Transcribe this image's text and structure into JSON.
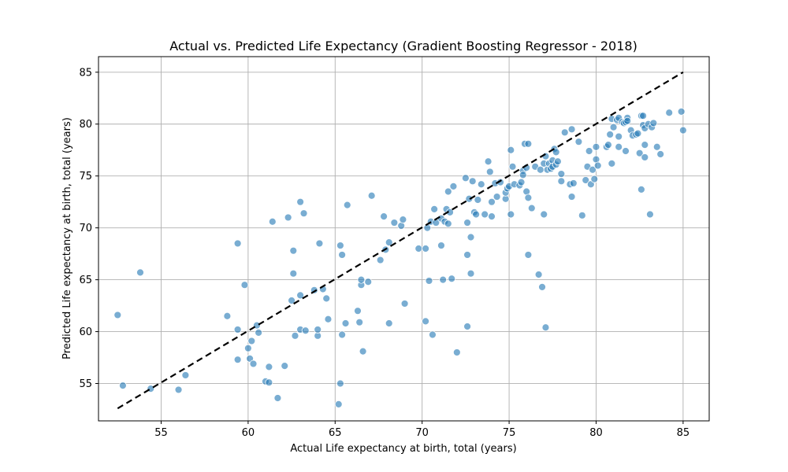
{
  "chart_data": {
    "type": "scatter",
    "title": "Actual vs. Predicted Life Expectancy (Gradient Boosting Regressor - 2018)",
    "xlabel": "Actual Life expectancy at birth, total (years)",
    "ylabel": "Predicted Life expectancy at birth, total (years)",
    "xlim": [
      51.4,
      86.5
    ],
    "ylim": [
      51.4,
      86.5
    ],
    "xticks": [
      55,
      60,
      65,
      70,
      75,
      80,
      85
    ],
    "yticks": [
      55,
      60,
      65,
      70,
      75,
      80,
      85
    ],
    "grid": true,
    "point_color": "#1f77b4",
    "reference_line": {
      "style": "dashed",
      "color": "#000000",
      "from": [
        52.5,
        52.6
      ],
      "to": [
        85.0,
        85.0
      ]
    },
    "points": [
      [
        52.5,
        61.6
      ],
      [
        52.8,
        54.8
      ],
      [
        53.8,
        65.7
      ],
      [
        54.4,
        54.5
      ],
      [
        56.0,
        54.4
      ],
      [
        56.4,
        55.8
      ],
      [
        58.8,
        61.5
      ],
      [
        59.4,
        68.5
      ],
      [
        59.4,
        60.2
      ],
      [
        59.4,
        57.3
      ],
      [
        59.8,
        64.5
      ],
      [
        60.0,
        58.4
      ],
      [
        60.1,
        57.4
      ],
      [
        60.2,
        59.1
      ],
      [
        60.3,
        56.9
      ],
      [
        60.5,
        60.6
      ],
      [
        60.6,
        59.9
      ],
      [
        61.0,
        55.2
      ],
      [
        61.2,
        56.6
      ],
      [
        61.2,
        55.1
      ],
      [
        61.4,
        70.6
      ],
      [
        61.7,
        53.6
      ],
      [
        62.1,
        56.7
      ],
      [
        62.3,
        71.0
      ],
      [
        62.5,
        63.0
      ],
      [
        62.6,
        65.6
      ],
      [
        62.6,
        67.8
      ],
      [
        62.7,
        59.6
      ],
      [
        63.0,
        72.5
      ],
      [
        63.0,
        63.5
      ],
      [
        63.0,
        60.2
      ],
      [
        63.2,
        71.4
      ],
      [
        63.3,
        60.1
      ],
      [
        63.8,
        64.0
      ],
      [
        64.0,
        59.6
      ],
      [
        64.0,
        60.2
      ],
      [
        64.1,
        68.5
      ],
      [
        64.3,
        64.1
      ],
      [
        64.5,
        63.2
      ],
      [
        64.6,
        61.2
      ],
      [
        65.2,
        53.0
      ],
      [
        65.3,
        55.0
      ],
      [
        65.3,
        68.3
      ],
      [
        65.4,
        59.7
      ],
      [
        65.4,
        67.4
      ],
      [
        65.6,
        60.8
      ],
      [
        65.7,
        72.2
      ],
      [
        66.3,
        62.0
      ],
      [
        66.4,
        60.9
      ],
      [
        66.5,
        64.5
      ],
      [
        66.5,
        65.0
      ],
      [
        66.6,
        58.1
      ],
      [
        66.9,
        64.8
      ],
      [
        67.1,
        73.1
      ],
      [
        67.6,
        66.9
      ],
      [
        67.8,
        71.1
      ],
      [
        67.9,
        67.9
      ],
      [
        68.1,
        60.8
      ],
      [
        68.1,
        68.6
      ],
      [
        68.4,
        70.5
      ],
      [
        68.8,
        70.2
      ],
      [
        68.9,
        70.8
      ],
      [
        69.0,
        62.7
      ],
      [
        69.8,
        68.0
      ],
      [
        70.2,
        68.0
      ],
      [
        70.2,
        61.0
      ],
      [
        70.3,
        70.0
      ],
      [
        70.4,
        64.9
      ],
      [
        70.5,
        70.6
      ],
      [
        70.6,
        59.7
      ],
      [
        70.7,
        71.8
      ],
      [
        70.8,
        70.5
      ],
      [
        71.1,
        68.3
      ],
      [
        71.1,
        70.9
      ],
      [
        71.2,
        65.0
      ],
      [
        71.3,
        70.6
      ],
      [
        71.4,
        71.8
      ],
      [
        71.5,
        73.5
      ],
      [
        71.5,
        70.4
      ],
      [
        71.6,
        71.5
      ],
      [
        71.7,
        65.1
      ],
      [
        71.8,
        74.0
      ],
      [
        72.0,
        58.0
      ],
      [
        72.5,
        74.8
      ],
      [
        72.6,
        60.5
      ],
      [
        72.6,
        67.4
      ],
      [
        72.6,
        70.5
      ],
      [
        72.7,
        72.8
      ],
      [
        72.8,
        65.6
      ],
      [
        72.8,
        69.1
      ],
      [
        72.9,
        74.5
      ],
      [
        73.0,
        71.5
      ],
      [
        73.1,
        71.3
      ],
      [
        73.2,
        72.7
      ],
      [
        73.4,
        74.2
      ],
      [
        73.6,
        71.3
      ],
      [
        73.8,
        76.4
      ],
      [
        73.9,
        75.4
      ],
      [
        74.0,
        71.1
      ],
      [
        74.0,
        72.5
      ],
      [
        74.2,
        74.3
      ],
      [
        74.3,
        73.0
      ],
      [
        74.5,
        74.4
      ],
      [
        74.8,
        72.8
      ],
      [
        74.8,
        73.4
      ],
      [
        74.9,
        73.8
      ],
      [
        75.0,
        74.0
      ],
      [
        75.1,
        77.5
      ],
      [
        75.1,
        71.3
      ],
      [
        75.2,
        75.9
      ],
      [
        75.3,
        74.2
      ],
      [
        75.6,
        74.1
      ],
      [
        75.7,
        74.4
      ],
      [
        75.8,
        75.5
      ],
      [
        75.8,
        75.1
      ],
      [
        75.9,
        78.1
      ],
      [
        76.0,
        73.5
      ],
      [
        76.0,
        75.8
      ],
      [
        76.1,
        78.1
      ],
      [
        76.1,
        67.4
      ],
      [
        76.1,
        72.9
      ],
      [
        76.3,
        71.9
      ],
      [
        76.5,
        75.9
      ],
      [
        76.7,
        65.5
      ],
      [
        76.8,
        75.6
      ],
      [
        76.9,
        64.3
      ],
      [
        77.0,
        76.2
      ],
      [
        77.0,
        71.3
      ],
      [
        77.1,
        60.4
      ],
      [
        77.1,
        76.9
      ],
      [
        77.2,
        75.6
      ],
      [
        77.3,
        76.2
      ],
      [
        77.4,
        75.7
      ],
      [
        77.5,
        76.5
      ],
      [
        77.5,
        75.9
      ],
      [
        77.6,
        77.6
      ],
      [
        77.7,
        77.3
      ],
      [
        77.7,
        76.1
      ],
      [
        77.8,
        76.4
      ],
      [
        78.0,
        75.2
      ],
      [
        78.0,
        74.5
      ],
      [
        78.2,
        79.2
      ],
      [
        78.5,
        74.2
      ],
      [
        78.6,
        79.5
      ],
      [
        78.6,
        73.0
      ],
      [
        78.7,
        74.3
      ],
      [
        79.0,
        78.3
      ],
      [
        79.2,
        71.2
      ],
      [
        79.4,
        74.6
      ],
      [
        79.5,
        75.9
      ],
      [
        79.6,
        77.4
      ],
      [
        79.7,
        74.2
      ],
      [
        79.8,
        75.6
      ],
      [
        79.9,
        74.7
      ],
      [
        80.0,
        76.6
      ],
      [
        80.0,
        77.8
      ],
      [
        80.1,
        76.0
      ],
      [
        80.6,
        77.8
      ],
      [
        80.7,
        78.0
      ],
      [
        80.8,
        79.0
      ],
      [
        80.9,
        76.2
      ],
      [
        80.9,
        80.5
      ],
      [
        81.0,
        79.7
      ],
      [
        81.2,
        80.4
      ],
      [
        81.3,
        77.8
      ],
      [
        81.3,
        80.6
      ],
      [
        81.3,
        78.8
      ],
      [
        81.5,
        80.2
      ],
      [
        81.6,
        80.1
      ],
      [
        81.7,
        77.4
      ],
      [
        81.7,
        80.2
      ],
      [
        81.8,
        80.6
      ],
      [
        81.8,
        80.3
      ],
      [
        82.0,
        79.4
      ],
      [
        82.1,
        78.9
      ],
      [
        82.3,
        79.0
      ],
      [
        82.4,
        79.1
      ],
      [
        82.5,
        77.2
      ],
      [
        82.6,
        73.7
      ],
      [
        82.6,
        80.8
      ],
      [
        82.7,
        79.9
      ],
      [
        82.7,
        80.8
      ],
      [
        82.8,
        76.8
      ],
      [
        82.8,
        79.6
      ],
      [
        82.8,
        78.0
      ],
      [
        83.0,
        80.0
      ],
      [
        83.1,
        71.3
      ],
      [
        83.2,
        79.7
      ],
      [
        83.3,
        80.1
      ],
      [
        83.5,
        77.8
      ],
      [
        83.7,
        77.1
      ],
      [
        84.2,
        81.1
      ],
      [
        84.9,
        81.2
      ],
      [
        85.0,
        79.4
      ]
    ]
  }
}
